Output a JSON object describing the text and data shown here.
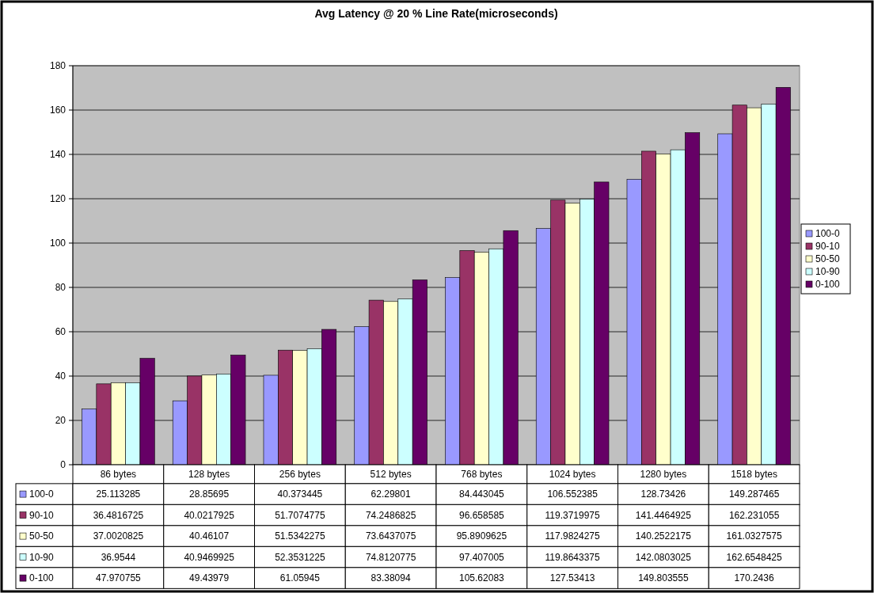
{
  "chart_data": {
    "type": "bar",
    "title": "Avg Latency @ 20 % Line Rate(microseconds)",
    "categories": [
      "86 bytes",
      "128 bytes",
      "256 bytes",
      "512 bytes",
      "768 bytes",
      "1024 bytes",
      "1280 bytes",
      "1518 bytes"
    ],
    "series": [
      {
        "name": "100-0",
        "color": "#9999ff",
        "values": [
          25.113285,
          28.85695,
          40.373445,
          62.29801,
          84.443045,
          106.552385,
          128.73426,
          149.287465
        ]
      },
      {
        "name": "90-10",
        "color": "#993366",
        "values": [
          36.4816725,
          40.0217925,
          51.7074775,
          74.2486825,
          96.658585,
          119.3719975,
          141.4464925,
          162.231055
        ]
      },
      {
        "name": "50-50",
        "color": "#ffffcc",
        "values": [
          37.0020825,
          40.46107,
          51.5342275,
          73.6437075,
          95.8909625,
          117.9824275,
          140.2522175,
          161.0327575
        ]
      },
      {
        "name": "10-90",
        "color": "#ccffff",
        "values": [
          36.9544,
          40.9469925,
          52.3531225,
          74.8120775,
          97.407005,
          119.8643375,
          142.0803025,
          162.6548425
        ]
      },
      {
        "name": "0-100",
        "color": "#660066",
        "values": [
          47.970755,
          49.43979,
          61.05945,
          83.38094,
          105.62083,
          127.53413,
          149.803555,
          170.2436
        ]
      }
    ],
    "ylim": [
      0,
      180
    ],
    "yticks": [
      0,
      20,
      40,
      60,
      80,
      100,
      120,
      140,
      160,
      180
    ],
    "grid": "y",
    "legend": "right",
    "data_labels": true
  }
}
